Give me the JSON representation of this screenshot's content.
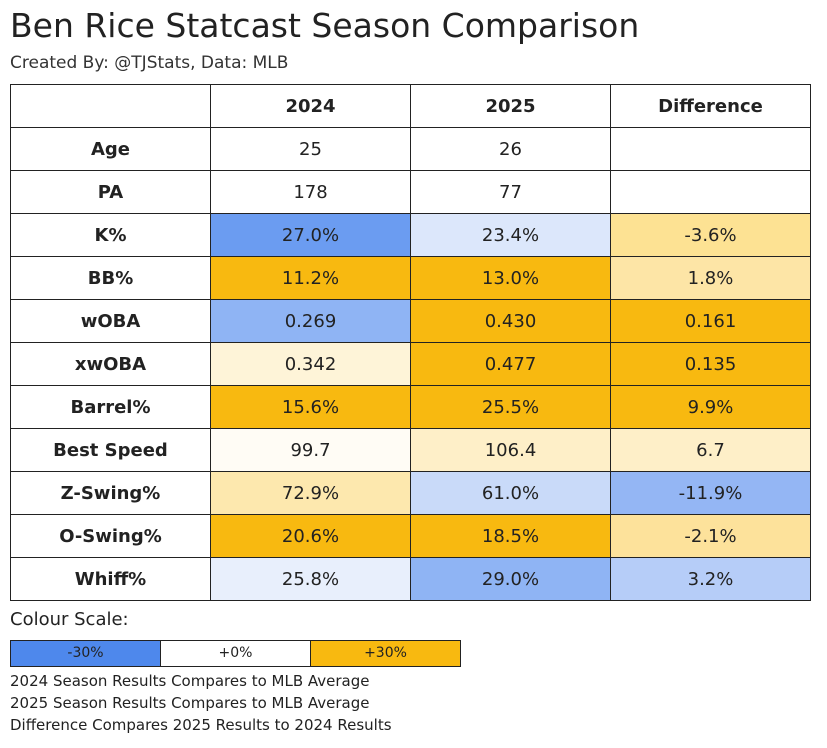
{
  "title": "Ben Rice Statcast Season Comparison",
  "subtitle": "Created By: @TJStats, Data: MLB",
  "chart_data": {
    "type": "table",
    "columns": [
      "",
      "2024",
      "2025",
      "Difference"
    ],
    "rows": [
      {
        "label": "Age",
        "cells": [
          {
            "text": "25",
            "color": "#ffffff"
          },
          {
            "text": "26",
            "color": "#ffffff"
          },
          {
            "text": "",
            "color": "#ffffff"
          }
        ]
      },
      {
        "label": "PA",
        "cells": [
          {
            "text": "178",
            "color": "#ffffff"
          },
          {
            "text": "77",
            "color": "#ffffff"
          },
          {
            "text": "",
            "color": "#ffffff"
          }
        ]
      },
      {
        "label": "K%",
        "cells": [
          {
            "text": "27.0%",
            "color": "#6b9cf1"
          },
          {
            "text": "23.4%",
            "color": "#dce7fb"
          },
          {
            "text": "-3.6%",
            "color": "#fde293"
          }
        ]
      },
      {
        "label": "BB%",
        "cells": [
          {
            "text": "11.2%",
            "color": "#f8b910"
          },
          {
            "text": "13.0%",
            "color": "#f8b910"
          },
          {
            "text": "1.8%",
            "color": "#fde5a6"
          }
        ]
      },
      {
        "label": "wOBA",
        "cells": [
          {
            "text": "0.269",
            "color": "#8fb4f4"
          },
          {
            "text": "0.430",
            "color": "#f8b910"
          },
          {
            "text": "0.161",
            "color": "#f8b910"
          }
        ]
      },
      {
        "label": "xwOBA",
        "cells": [
          {
            "text": "0.342",
            "color": "#fef4d8"
          },
          {
            "text": "0.477",
            "color": "#f8b910"
          },
          {
            "text": "0.135",
            "color": "#f8b910"
          }
        ]
      },
      {
        "label": "Barrel%",
        "cells": [
          {
            "text": "15.6%",
            "color": "#f8b910"
          },
          {
            "text": "25.5%",
            "color": "#f8b910"
          },
          {
            "text": "9.9%",
            "color": "#f8b910"
          }
        ]
      },
      {
        "label": "Best Speed",
        "cells": [
          {
            "text": "99.7",
            "color": "#fffcf5"
          },
          {
            "text": "106.4",
            "color": "#feefc8"
          },
          {
            "text": "6.7",
            "color": "#feefc8"
          }
        ]
      },
      {
        "label": "Z-Swing%",
        "cells": [
          {
            "text": "72.9%",
            "color": "#fde8ae"
          },
          {
            "text": "61.0%",
            "color": "#c9daf9"
          },
          {
            "text": "-11.9%",
            "color": "#94b6f4"
          }
        ]
      },
      {
        "label": "O-Swing%",
        "cells": [
          {
            "text": "20.6%",
            "color": "#f8b910"
          },
          {
            "text": "18.5%",
            "color": "#f8b910"
          },
          {
            "text": "-2.1%",
            "color": "#fde29b"
          }
        ]
      },
      {
        "label": "Whiff%",
        "cells": [
          {
            "text": "25.8%",
            "color": "#e8effc"
          },
          {
            "text": "29.0%",
            "color": "#8fb4f4"
          },
          {
            "text": "3.2%",
            "color": "#b6cdf8"
          }
        ]
      }
    ]
  },
  "legend": {
    "title": "Colour Scale:",
    "items": [
      {
        "label": "-30%",
        "color": "#4e88ec"
      },
      {
        "label": "+0%",
        "color": "#ffffff"
      },
      {
        "label": "+30%",
        "color": "#f8b910"
      }
    ]
  },
  "notes": [
    "2024 Season Results Compares to MLB Average",
    "2025 Season Results Compares to MLB Average",
    "Difference Compares 2025 Results to 2024 Results"
  ]
}
